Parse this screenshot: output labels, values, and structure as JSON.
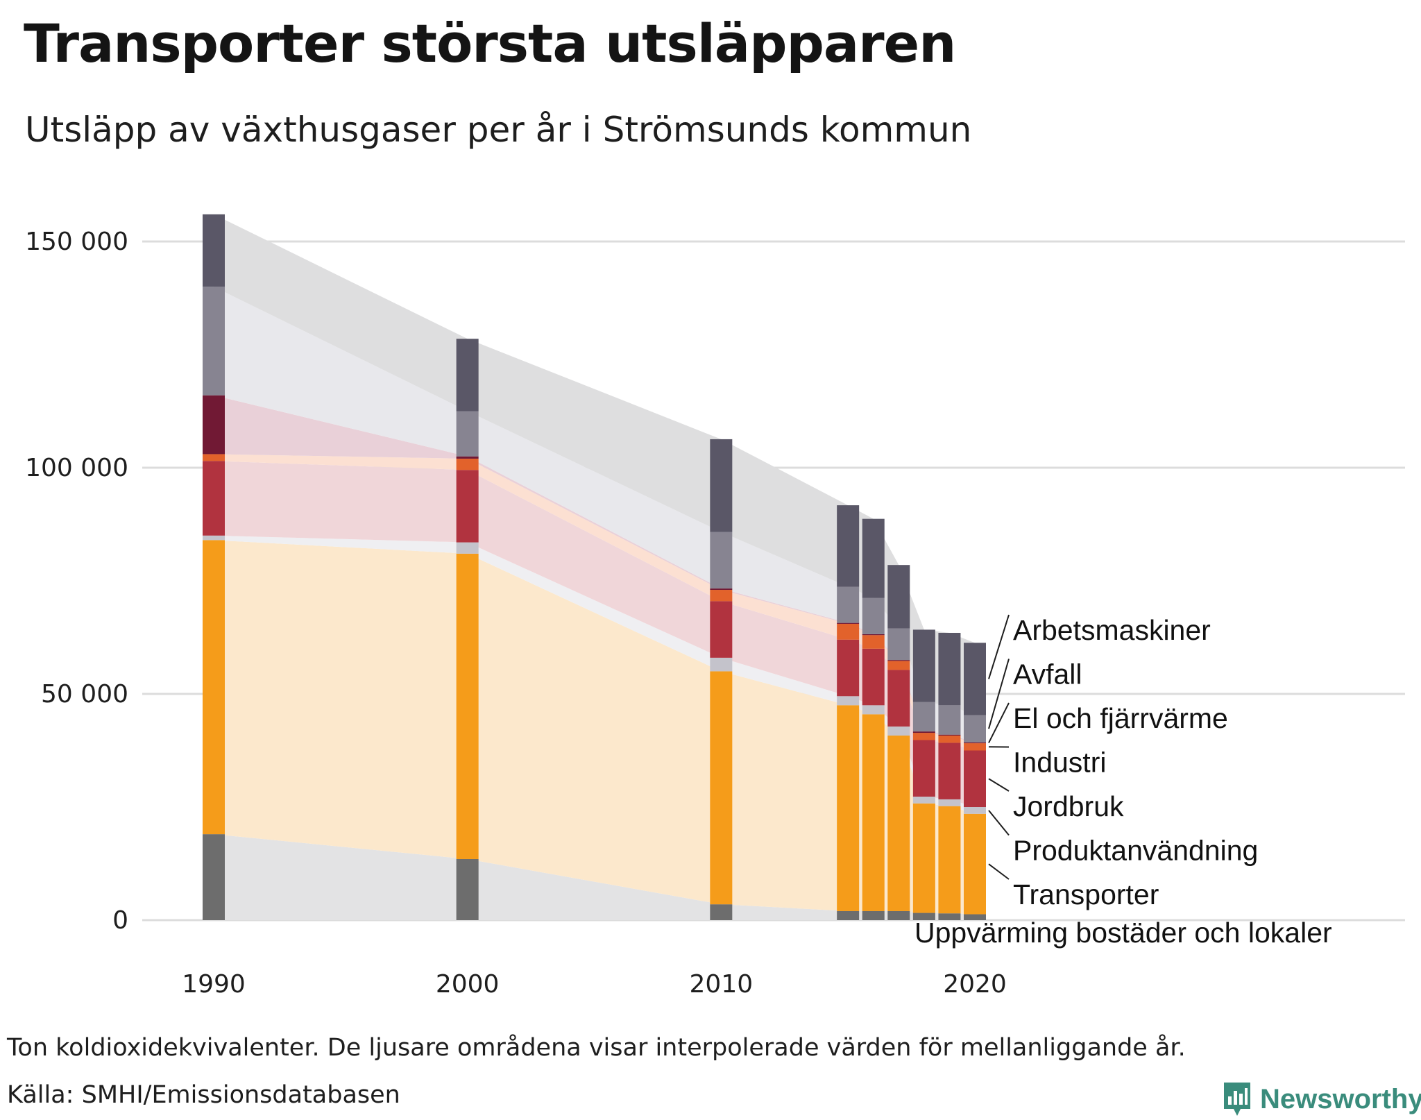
{
  "title": "Transporter största utsläpparen",
  "subtitle": "Utsläpp av växthusgaser per år i Strömsunds kommun",
  "footnote": "Ton koldioxidekvivalenter. De ljusare områdena visar interpolerade värden för mellanliggande år.",
  "source": "Källa: SMHI/Emissionsdatabasen",
  "brand": "Newsworthy",
  "colors": {
    "grid": "#dcdcdc",
    "text": "#1e1e1e",
    "brand": "#3a8c7c"
  },
  "chart_data": {
    "type": "bar",
    "stacked": true,
    "title": "Transporter största utsläpparen",
    "subtitle": "Utsläpp av växthusgaser per år i Strömsunds kommun",
    "unit": "Ton koldioxidekvivalenter",
    "x": [
      1990,
      2000,
      2010,
      2015,
      2016,
      2017,
      2018,
      2019,
      2020
    ],
    "xticks": [
      1990,
      2000,
      2010,
      2020
    ],
    "xtick_labels": [
      "1990",
      "2000",
      "2010",
      "2020"
    ],
    "ylim": [
      0,
      160000
    ],
    "yticks": [
      0,
      50000,
      100000,
      150000
    ],
    "ytick_labels": [
      "0",
      "50 000",
      "100 000",
      "150 000"
    ],
    "grid": true,
    "interpolated_areas": true,
    "series": [
      {
        "name": "Uppvärming bostäder och lokaler",
        "color": "#6d6d6d",
        "band": "#e3e3e4",
        "values": [
          19000,
          13500,
          3500,
          2000,
          2000,
          2000,
          1600,
          1500,
          1300
        ]
      },
      {
        "name": "Transporter",
        "color": "#f59c1a",
        "band": "#fce8cc",
        "values": [
          65000,
          67500,
          51500,
          45500,
          43500,
          38800,
          24200,
          23700,
          22200
        ]
      },
      {
        "name": "Produktanvändning",
        "color": "#c4c3cb",
        "band": "#efeff2",
        "values": [
          1000,
          2500,
          3000,
          2000,
          2000,
          2000,
          1500,
          1500,
          1500
        ]
      },
      {
        "name": "Jordbruk",
        "color": "#b1333f",
        "band": "#f0d6d9",
        "values": [
          16500,
          16000,
          12500,
          12500,
          12500,
          12500,
          12500,
          12500,
          12500
        ]
      },
      {
        "name": "Industri",
        "color": "#e2622b",
        "band": "#fce0d2",
        "values": [
          1500,
          2500,
          2500,
          3500,
          3000,
          2000,
          1600,
          1600,
          1600
        ]
      },
      {
        "name": "El och fjärrvärme",
        "color": "#711934",
        "band": "#e9d0d8",
        "values": [
          13000,
          500,
          300,
          200,
          200,
          200,
          300,
          200,
          200
        ]
      },
      {
        "name": "Avfall",
        "color": "#878491",
        "band": "#e8e8ec",
        "values": [
          24000,
          10000,
          12500,
          8000,
          8000,
          7000,
          6500,
          6500,
          6000
        ]
      },
      {
        "name": "Arbetsmaskiner",
        "color": "#5a5767",
        "band": "#dededf",
        "values": [
          16000,
          16000,
          20500,
          18000,
          17500,
          14000,
          16000,
          16000,
          16000
        ]
      }
    ],
    "legend_placement": "right"
  }
}
